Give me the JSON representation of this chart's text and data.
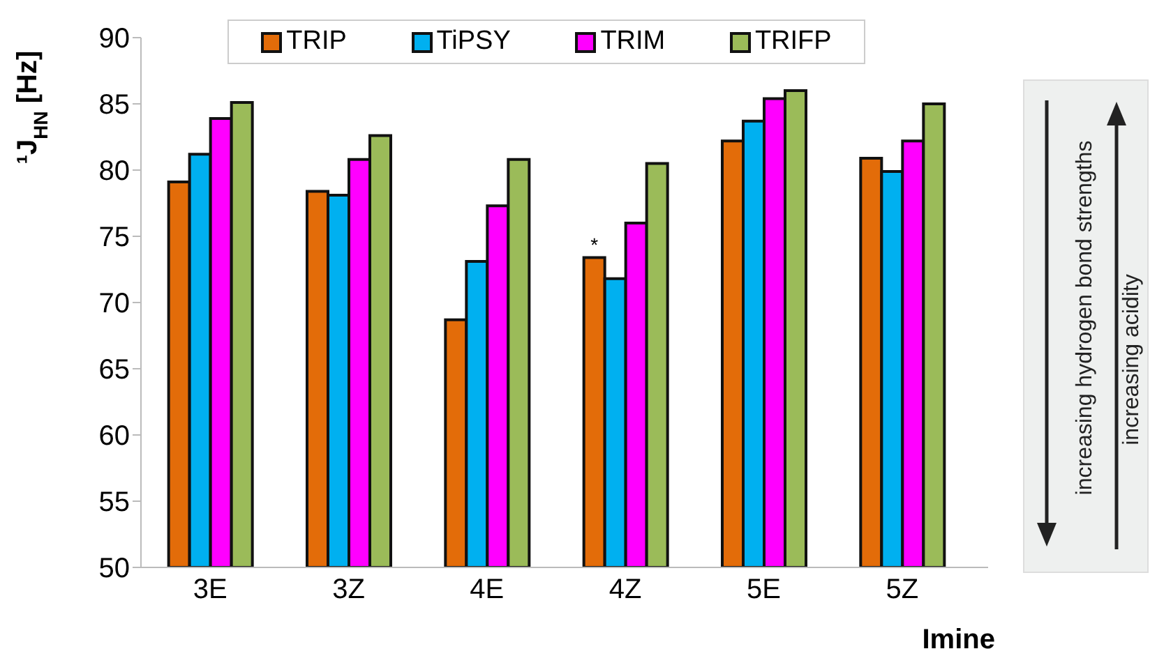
{
  "chart_data": {
    "type": "bar",
    "xlabel": "Imine",
    "ylabel": "¹J$_{HN}$ [Hz]",
    "categories": [
      "3E",
      "3Z",
      "4E",
      "4Z",
      "5E",
      "5Z"
    ],
    "series": [
      {
        "name": "TRIP",
        "color": "#e36c09",
        "values": [
          79.1,
          78.4,
          68.7,
          73.4,
          82.2,
          80.9
        ]
      },
      {
        "name": "TiPSY",
        "color": "#00b0f0",
        "values": [
          81.2,
          78.1,
          73.1,
          71.8,
          83.7,
          79.9
        ]
      },
      {
        "name": "TRIM",
        "color": "#ff00ff",
        "values": [
          83.9,
          80.8,
          77.3,
          76.0,
          85.4,
          82.2
        ]
      },
      {
        "name": "TRIFP",
        "color": "#9bbb59",
        "values": [
          85.1,
          82.6,
          80.8,
          80.5,
          86.0,
          85.0
        ]
      }
    ],
    "ylim": [
      50,
      90
    ],
    "yticks": [
      50,
      55,
      60,
      65,
      70,
      75,
      80,
      85,
      90
    ],
    "grid": false,
    "legend": "top",
    "annotations": [
      {
        "text": "*",
        "x": "4Z",
        "y": 73.4
      },
      "increasing hydrogen bond strengths",
      "increasing acidity"
    ]
  }
}
